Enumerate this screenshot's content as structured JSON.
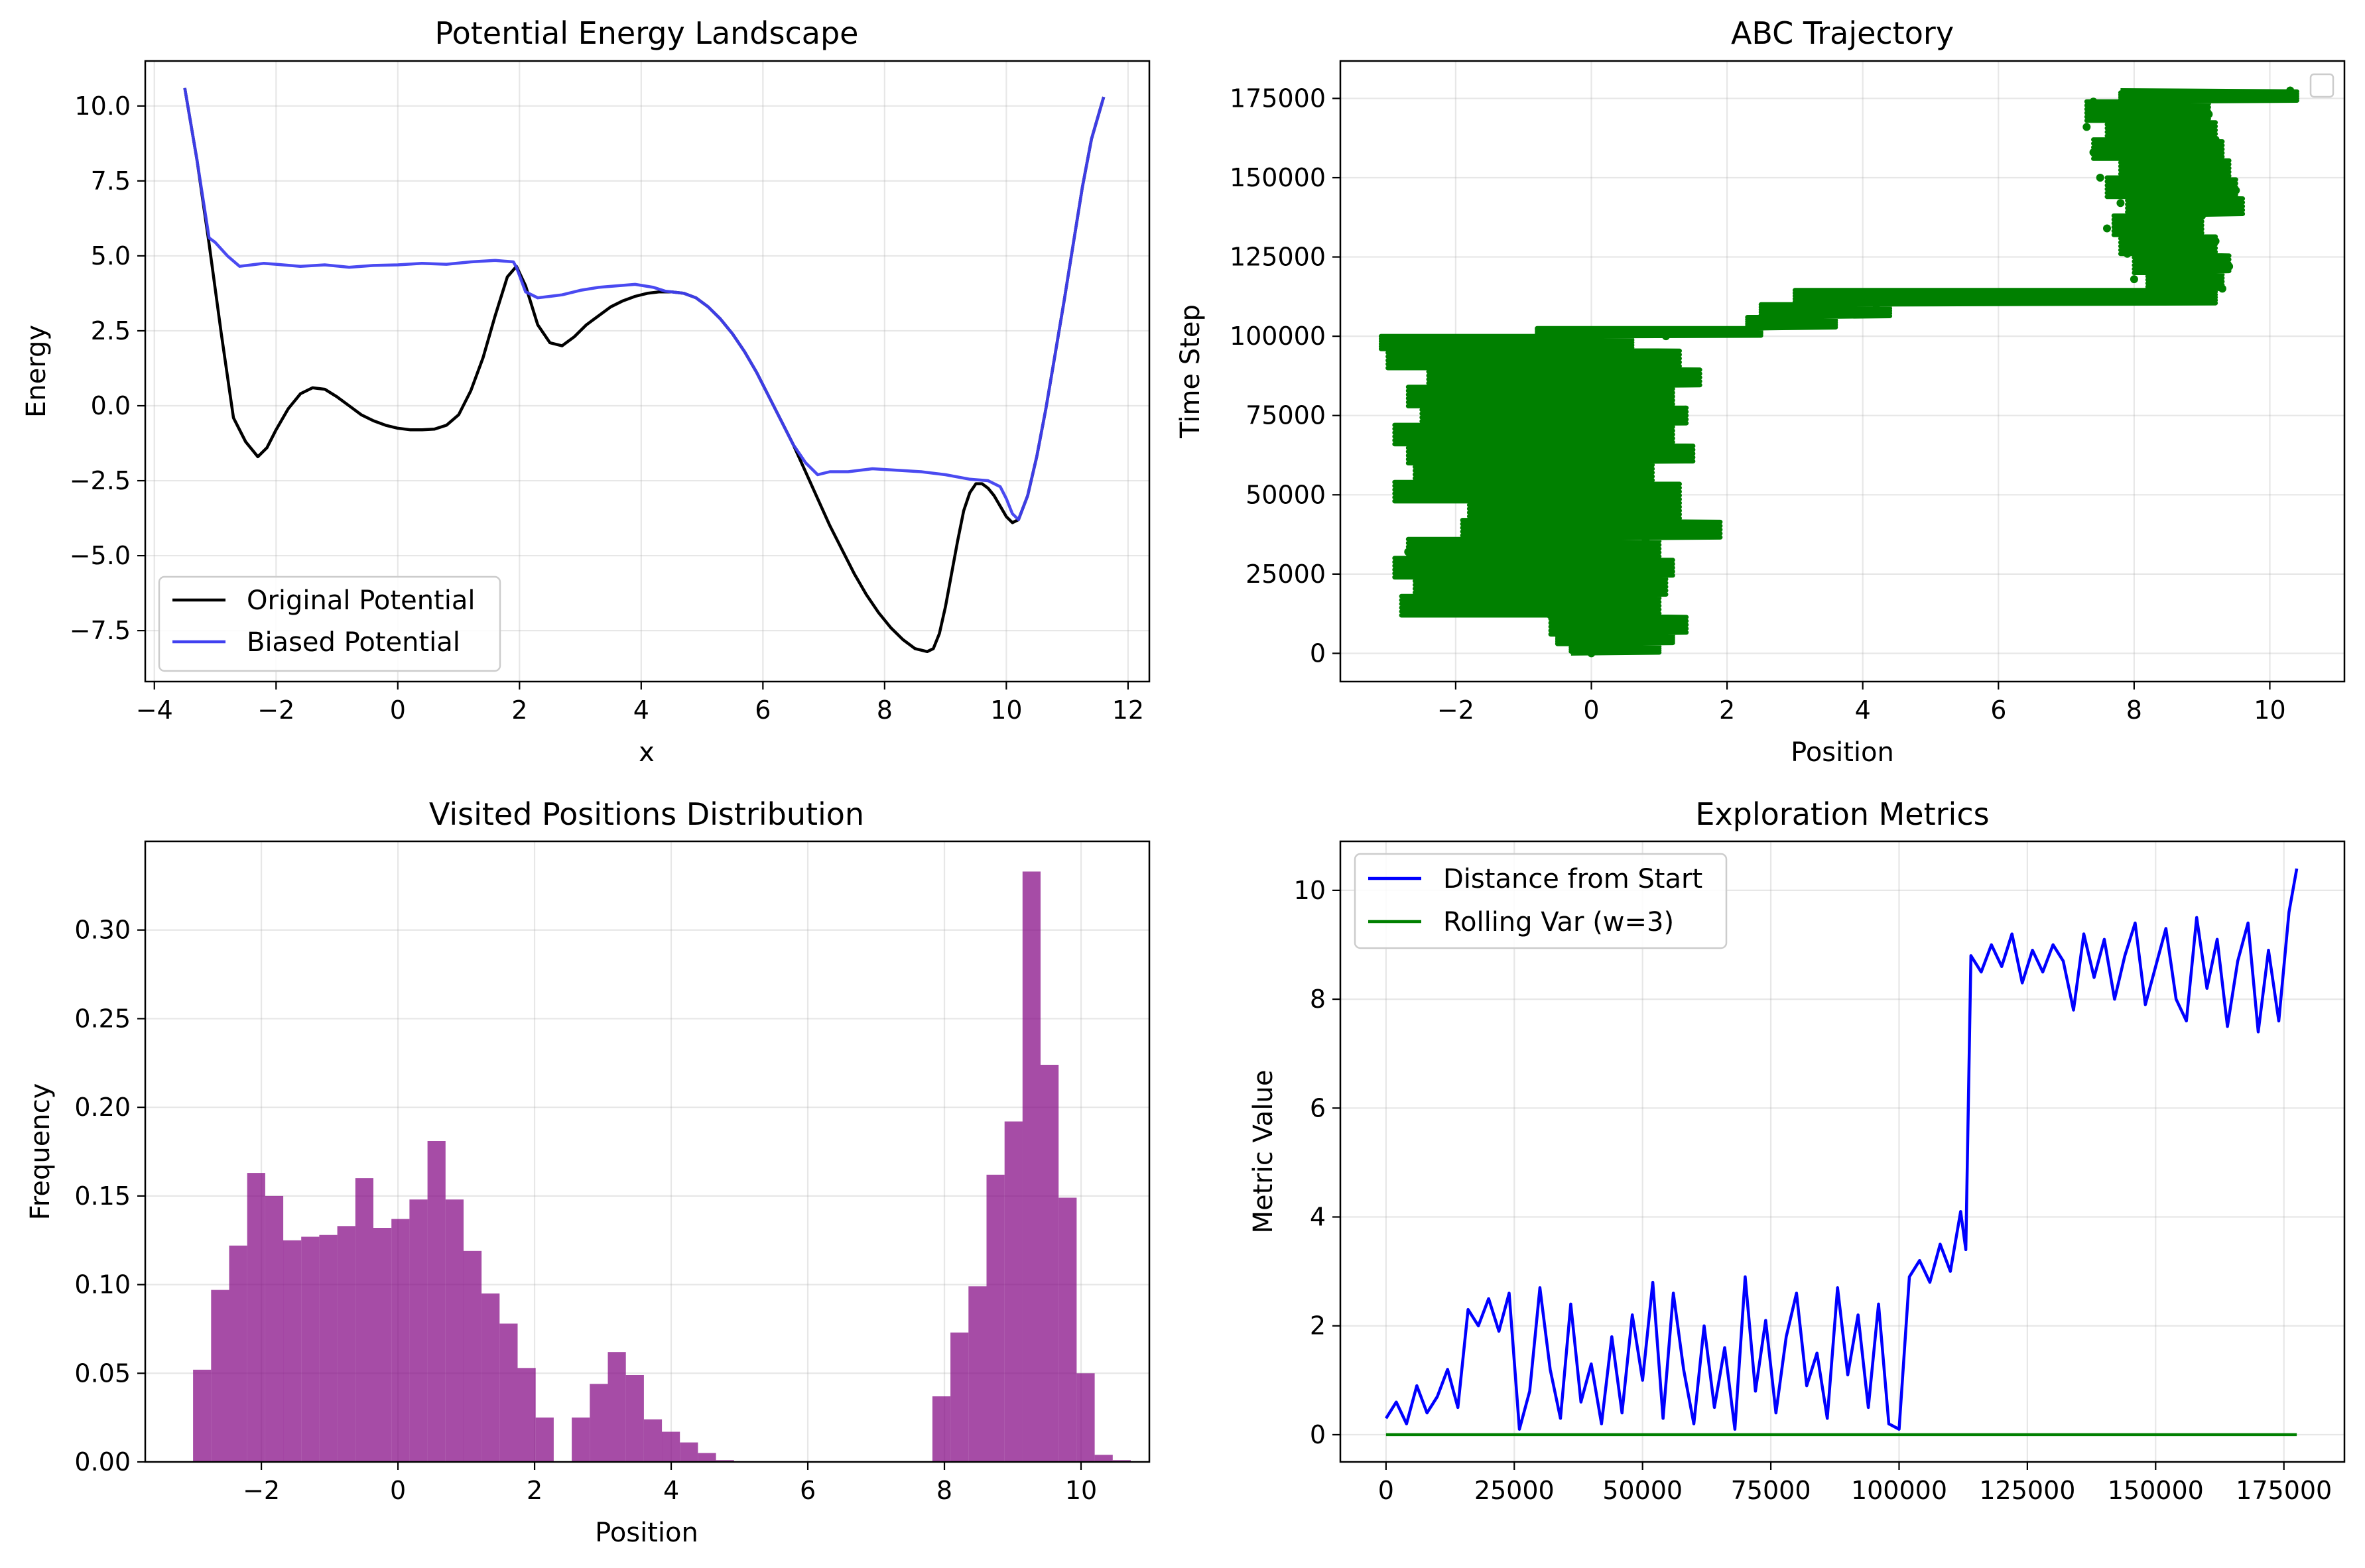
{
  "figure": {
    "background": "#ffffff"
  },
  "chart_data": [
    {
      "id": "potential",
      "type": "line",
      "title": "Potential Energy Landscape",
      "xlabel": "x",
      "ylabel": "Energy",
      "xlim": [
        -4.15,
        12.35
      ],
      "ylim": [
        -9.2,
        11.5
      ],
      "xticks": [
        -4,
        -2,
        0,
        2,
        4,
        6,
        8,
        10,
        12
      ],
      "xtick_labels": [
        "−4",
        "−2",
        "0",
        "2",
        "4",
        "6",
        "8",
        "10",
        "12"
      ],
      "yticks": [
        -7.5,
        -5.0,
        -2.5,
        0.0,
        2.5,
        5.0,
        7.5,
        10.0
      ],
      "ytick_labels": [
        "−7.5",
        "−5.0",
        "−2.5",
        "0.0",
        "2.5",
        "5.0",
        "7.5",
        "10.0"
      ],
      "grid": true,
      "legend_position": "lower-left",
      "series": [
        {
          "name": "Original Potential",
          "color": "#000000",
          "x": [
            -3.5,
            -3.3,
            -3.1,
            -2.9,
            -2.7,
            -2.5,
            -2.3,
            -2.15,
            -2.0,
            -1.8,
            -1.6,
            -1.4,
            -1.2,
            -1.0,
            -0.8,
            -0.6,
            -0.4,
            -0.2,
            0.0,
            0.2,
            0.4,
            0.6,
            0.8,
            1.0,
            1.2,
            1.4,
            1.6,
            1.8,
            1.95,
            2.1,
            2.3,
            2.5,
            2.7,
            2.9,
            3.1,
            3.3,
            3.5,
            3.7,
            3.9,
            4.1,
            4.3,
            4.5,
            4.7,
            4.9,
            5.1,
            5.3,
            5.5,
            5.7,
            5.9,
            6.1,
            6.3,
            6.5,
            6.7,
            6.9,
            7.1,
            7.3,
            7.5,
            7.7,
            7.9,
            8.1,
            8.3,
            8.5,
            8.7,
            8.8,
            8.9,
            9.0,
            9.1,
            9.2,
            9.3,
            9.4,
            9.5,
            9.6,
            9.7,
            9.8,
            9.9,
            10.0,
            10.1,
            10.2,
            10.35,
            10.5,
            10.65,
            10.8,
            10.95,
            11.1,
            11.25,
            11.4,
            11.5,
            11.6
          ],
          "y": [
            10.6,
            8.2,
            5.4,
            2.4,
            -0.4,
            -1.2,
            -1.7,
            -1.4,
            -0.8,
            -0.1,
            0.4,
            0.6,
            0.55,
            0.3,
            0.0,
            -0.3,
            -0.5,
            -0.65,
            -0.75,
            -0.8,
            -0.8,
            -0.78,
            -0.65,
            -0.3,
            0.5,
            1.6,
            3.0,
            4.3,
            4.65,
            4.0,
            2.7,
            2.1,
            2.0,
            2.3,
            2.7,
            3.0,
            3.3,
            3.5,
            3.65,
            3.75,
            3.8,
            3.8,
            3.75,
            3.6,
            3.3,
            2.9,
            2.4,
            1.8,
            1.1,
            0.3,
            -0.5,
            -1.3,
            -2.2,
            -3.1,
            -4.0,
            -4.8,
            -5.6,
            -6.3,
            -6.9,
            -7.4,
            -7.8,
            -8.1,
            -8.2,
            -8.1,
            -7.6,
            -6.7,
            -5.6,
            -4.5,
            -3.5,
            -2.9,
            -2.6,
            -2.6,
            -2.75,
            -3.0,
            -3.35,
            -3.7,
            -3.9,
            -3.8,
            -3.0,
            -1.7,
            -0.1,
            1.7,
            3.5,
            5.4,
            7.3,
            8.9,
            9.6,
            10.3
          ]
        },
        {
          "name": "Biased Potential",
          "color": "#4040f0",
          "x": [
            -3.5,
            -3.3,
            -3.1,
            -3.0,
            -2.8,
            -2.6,
            -2.4,
            -2.2,
            -2.0,
            -1.6,
            -1.2,
            -0.8,
            -0.4,
            0.0,
            0.4,
            0.8,
            1.2,
            1.6,
            1.9,
            1.95,
            2.1,
            2.3,
            2.5,
            2.7,
            3.0,
            3.3,
            3.6,
            3.9,
            4.2,
            4.4,
            4.5,
            4.7,
            4.9,
            5.1,
            5.3,
            5.5,
            5.7,
            5.9,
            6.1,
            6.3,
            6.5,
            6.7,
            6.9,
            7.1,
            7.4,
            7.8,
            8.2,
            8.6,
            9.0,
            9.4,
            9.7,
            9.9,
            10.0,
            10.1,
            10.2,
            10.35,
            10.5,
            10.65,
            10.8,
            10.95,
            11.1,
            11.25,
            11.4,
            11.5,
            11.6
          ],
          "y": [
            10.6,
            8.2,
            5.6,
            5.45,
            5.0,
            4.65,
            4.7,
            4.75,
            4.72,
            4.65,
            4.7,
            4.62,
            4.68,
            4.7,
            4.75,
            4.72,
            4.8,
            4.85,
            4.8,
            4.62,
            3.8,
            3.6,
            3.65,
            3.7,
            3.85,
            3.95,
            4.0,
            4.05,
            3.95,
            3.82,
            3.8,
            3.75,
            3.6,
            3.3,
            2.9,
            2.4,
            1.8,
            1.1,
            0.3,
            -0.5,
            -1.3,
            -1.9,
            -2.3,
            -2.2,
            -2.2,
            -2.1,
            -2.15,
            -2.2,
            -2.3,
            -2.45,
            -2.5,
            -2.7,
            -3.1,
            -3.6,
            -3.8,
            -3.0,
            -1.7,
            -0.1,
            1.7,
            3.5,
            5.4,
            7.3,
            8.9,
            9.6,
            10.3
          ]
        }
      ]
    },
    {
      "id": "trajectory",
      "type": "scatter",
      "title": "ABC Trajectory",
      "xlabel": "Position",
      "ylabel": "Time Step",
      "xlim": [
        -3.7,
        11.1
      ],
      "ylim": [
        -8900,
        186800
      ],
      "xticks": [
        -2,
        0,
        2,
        4,
        6,
        8,
        10
      ],
      "xtick_labels": [
        "−2",
        "0",
        "2",
        "4",
        "6",
        "8",
        "10"
      ],
      "yticks": [
        0,
        25000,
        50000,
        75000,
        100000,
        125000,
        150000,
        175000
      ],
      "ytick_labels": [
        "0",
        "25000",
        "50000",
        "75000",
        "100000",
        "125000",
        "150000",
        "175000"
      ],
      "grid": true,
      "legend_position": "top-right",
      "legend_empty": true,
      "color": "#008000",
      "t": [
        0,
        4000,
        8000,
        12000,
        16000,
        20000,
        24000,
        28000,
        32000,
        36000,
        40000,
        44000,
        48000,
        52000,
        56000,
        60000,
        64000,
        68000,
        72000,
        76000,
        80000,
        84000,
        88000,
        92000,
        96000,
        100000,
        101000,
        102000,
        104000,
        106000,
        108000,
        110000,
        112000,
        113500,
        115000,
        118000,
        122000,
        126000,
        130000,
        134000,
        138000,
        142000,
        146000,
        150000,
        154000,
        158000,
        162000,
        166000,
        170000,
        174000,
        176000,
        177500
      ],
      "x": [
        0.0,
        0.8,
        1.2,
        -0.6,
        -2.6,
        0.3,
        -1.8,
        1.1,
        -2.7,
        0.8,
        1.8,
        -1.4,
        0.9,
        -2.8,
        0.3,
        -1.9,
        1.2,
        -2.4,
        0.4,
        -1.1,
        1.0,
        -1.8,
        0.6,
        -2.8,
        -0.5,
        1.1,
        2.0,
        2.4,
        3.2,
        2.6,
        3.5,
        4.2,
        5.8,
        8.6,
        9.3,
        8.0,
        9.4,
        7.9,
        9.2,
        7.6,
        9.0,
        7.8,
        9.5,
        7.5,
        9.3,
        7.4,
        9.2,
        7.3,
        9.1,
        7.4,
        8.8,
        10.3
      ],
      "x_ranges": [
        [
          0,
          3000,
          -0.3,
          1.0
        ],
        [
          3000,
          6000,
          -0.5,
          1.2
        ],
        [
          6000,
          12000,
          -0.6,
          1.4
        ],
        [
          12000,
          18000,
          -2.8,
          1.0
        ],
        [
          18000,
          24000,
          -2.6,
          1.1
        ],
        [
          24000,
          30000,
          -2.9,
          1.2
        ],
        [
          30000,
          36000,
          -2.7,
          1.0
        ],
        [
          36000,
          42000,
          -1.9,
          1.9
        ],
        [
          42000,
          48000,
          -1.8,
          1.3
        ],
        [
          48000,
          54000,
          -2.9,
          1.3
        ],
        [
          54000,
          60000,
          -2.6,
          0.9
        ],
        [
          60000,
          66000,
          -2.7,
          1.5
        ],
        [
          66000,
          72000,
          -2.9,
          1.2
        ],
        [
          72000,
          78000,
          -2.5,
          1.4
        ],
        [
          78000,
          84000,
          -2.7,
          1.2
        ],
        [
          84000,
          90000,
          -2.4,
          1.6
        ],
        [
          90000,
          96000,
          -3.0,
          1.3
        ],
        [
          96000,
          100000,
          -3.1,
          0.6
        ],
        [
          100000,
          102500,
          -0.8,
          2.5
        ],
        [
          102500,
          106000,
          2.3,
          3.6
        ],
        [
          106000,
          110000,
          2.5,
          4.4
        ],
        [
          110000,
          114500,
          3.0,
          9.2
        ],
        [
          114500,
          120000,
          8.2,
          9.3
        ],
        [
          120000,
          126000,
          8.0,
          9.4
        ],
        [
          126000,
          132000,
          7.8,
          9.2
        ],
        [
          132000,
          138000,
          7.7,
          9.0
        ],
        [
          138000,
          144000,
          7.9,
          9.6
        ],
        [
          144000,
          150000,
          7.6,
          9.5
        ],
        [
          150000,
          156000,
          7.8,
          9.4
        ],
        [
          156000,
          162000,
          7.4,
          9.3
        ],
        [
          162000,
          168000,
          7.6,
          9.2
        ],
        [
          168000,
          174000,
          7.3,
          9.1
        ],
        [
          174000,
          177500,
          7.8,
          10.4
        ]
      ]
    },
    {
      "id": "histogram",
      "type": "bar",
      "title": "Visited Positions Distribution",
      "xlabel": "Position",
      "ylabel": "Frequency",
      "xlim": [
        -3.7,
        11.0
      ],
      "ylim": [
        0,
        0.35
      ],
      "xticks": [
        -2,
        0,
        2,
        4,
        6,
        8,
        10
      ],
      "xtick_labels": [
        "−2",
        "0",
        "2",
        "4",
        "6",
        "8",
        "10"
      ],
      "yticks": [
        0.0,
        0.05,
        0.1,
        0.15,
        0.2,
        0.25,
        0.3
      ],
      "ytick_labels": [
        "0.00",
        "0.05",
        "0.10",
        "0.15",
        "0.20",
        "0.25",
        "0.30"
      ],
      "grid": true,
      "color": "#800080",
      "bin_start": -3.0,
      "bin_width": 0.264,
      "values": [
        0.052,
        0.097,
        0.122,
        0.163,
        0.15,
        0.125,
        0.127,
        0.128,
        0.133,
        0.16,
        0.132,
        0.137,
        0.148,
        0.181,
        0.148,
        0.119,
        0.095,
        0.078,
        0.053,
        0.025,
        0.0,
        0.025,
        0.044,
        0.062,
        0.049,
        0.024,
        0.017,
        0.011,
        0.005,
        0.001,
        0.0,
        0.0,
        0.0,
        0.0,
        0.0,
        0.0,
        0.0,
        0.0,
        0.0,
        0.0,
        0.0,
        0.037,
        0.073,
        0.099,
        0.162,
        0.192,
        0.333,
        0.224,
        0.149,
        0.05,
        0.004,
        0.001
      ]
    },
    {
      "id": "metrics",
      "type": "line",
      "title": "Exploration Metrics",
      "xlabel": "",
      "ylabel": "Metric Value",
      "xlim": [
        -8900,
        186800
      ],
      "ylim": [
        -0.5,
        10.9
      ],
      "xticks": [
        0,
        25000,
        50000,
        75000,
        100000,
        125000,
        150000,
        175000
      ],
      "xtick_labels": [
        "0",
        "25000",
        "50000",
        "75000",
        "100000",
        "125000",
        "150000",
        "175000"
      ],
      "yticks": [
        0,
        2,
        4,
        6,
        8,
        10
      ],
      "ytick_labels": [
        "0",
        "2",
        "4",
        "6",
        "8",
        "10"
      ],
      "grid": true,
      "legend_position": "top-left",
      "series": [
        {
          "name": "Distance from Start",
          "color": "#0000ff",
          "x": [
            0,
            2000,
            4000,
            6000,
            8000,
            10000,
            12000,
            14000,
            16000,
            18000,
            20000,
            22000,
            24000,
            26000,
            28000,
            30000,
            32000,
            34000,
            36000,
            38000,
            40000,
            42000,
            44000,
            46000,
            48000,
            50000,
            52000,
            54000,
            56000,
            58000,
            60000,
            62000,
            64000,
            66000,
            68000,
            70000,
            72000,
            74000,
            76000,
            78000,
            80000,
            82000,
            84000,
            86000,
            88000,
            90000,
            92000,
            94000,
            96000,
            98000,
            100000,
            102000,
            104000,
            106000,
            108000,
            110000,
            112000,
            113000,
            114000,
            116000,
            118000,
            120000,
            122000,
            124000,
            126000,
            128000,
            130000,
            132000,
            134000,
            136000,
            138000,
            140000,
            142000,
            144000,
            146000,
            148000,
            150000,
            152000,
            154000,
            156000,
            158000,
            160000,
            162000,
            164000,
            166000,
            168000,
            170000,
            172000,
            174000,
            176000,
            177500
          ],
          "y": [
            0.3,
            0.6,
            0.2,
            0.9,
            0.4,
            0.7,
            1.2,
            0.5,
            2.3,
            2.0,
            2.5,
            1.9,
            2.6,
            0.1,
            0.8,
            2.7,
            1.2,
            0.3,
            2.4,
            0.6,
            1.3,
            0.2,
            1.8,
            0.4,
            2.2,
            1.0,
            2.8,
            0.3,
            2.6,
            1.2,
            0.2,
            2.0,
            0.5,
            1.6,
            0.1,
            2.9,
            0.8,
            2.1,
            0.4,
            1.8,
            2.6,
            0.9,
            1.5,
            0.3,
            2.7,
            1.1,
            2.2,
            0.5,
            2.4,
            0.2,
            0.1,
            2.9,
            3.2,
            2.8,
            3.5,
            3.0,
            4.1,
            3.4,
            8.8,
            8.5,
            9.0,
            8.6,
            9.2,
            8.3,
            8.9,
            8.5,
            9.0,
            8.7,
            7.8,
            9.2,
            8.4,
            9.1,
            8.0,
            8.8,
            9.4,
            7.9,
            8.6,
            9.3,
            8.0,
            7.6,
            9.5,
            8.2,
            9.1,
            7.5,
            8.7,
            9.4,
            7.4,
            8.9,
            7.6,
            9.6,
            10.4
          ]
        },
        {
          "name": "Rolling Var (w=3)",
          "color": "#008000",
          "x": [
            0,
            177500
          ],
          "y": [
            0.0,
            0.0
          ]
        }
      ]
    }
  ]
}
